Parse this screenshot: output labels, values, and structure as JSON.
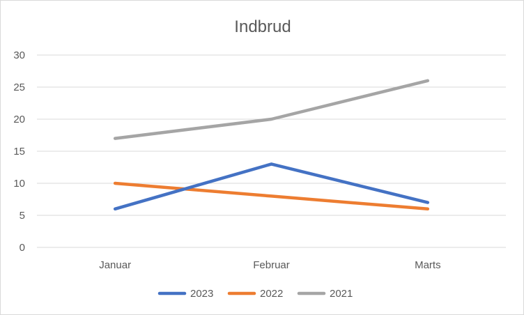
{
  "chart_data": {
    "type": "line",
    "title": "Indbrud",
    "xlabel": "",
    "ylabel": "",
    "categories": [
      "Januar",
      "Februar",
      "Marts"
    ],
    "ylim": [
      0,
      30
    ],
    "y_ticks": [
      0,
      5,
      10,
      15,
      20,
      25,
      30
    ],
    "grid": true,
    "legend": "bottom",
    "series": [
      {
        "name": "2023",
        "values": [
          6,
          13,
          7
        ],
        "color": "#4472C4"
      },
      {
        "name": "2022",
        "values": [
          10,
          8,
          6
        ],
        "color": "#ED7D31"
      },
      {
        "name": "2021",
        "values": [
          17,
          20,
          26
        ],
        "color": "#A5A5A5"
      }
    ]
  }
}
